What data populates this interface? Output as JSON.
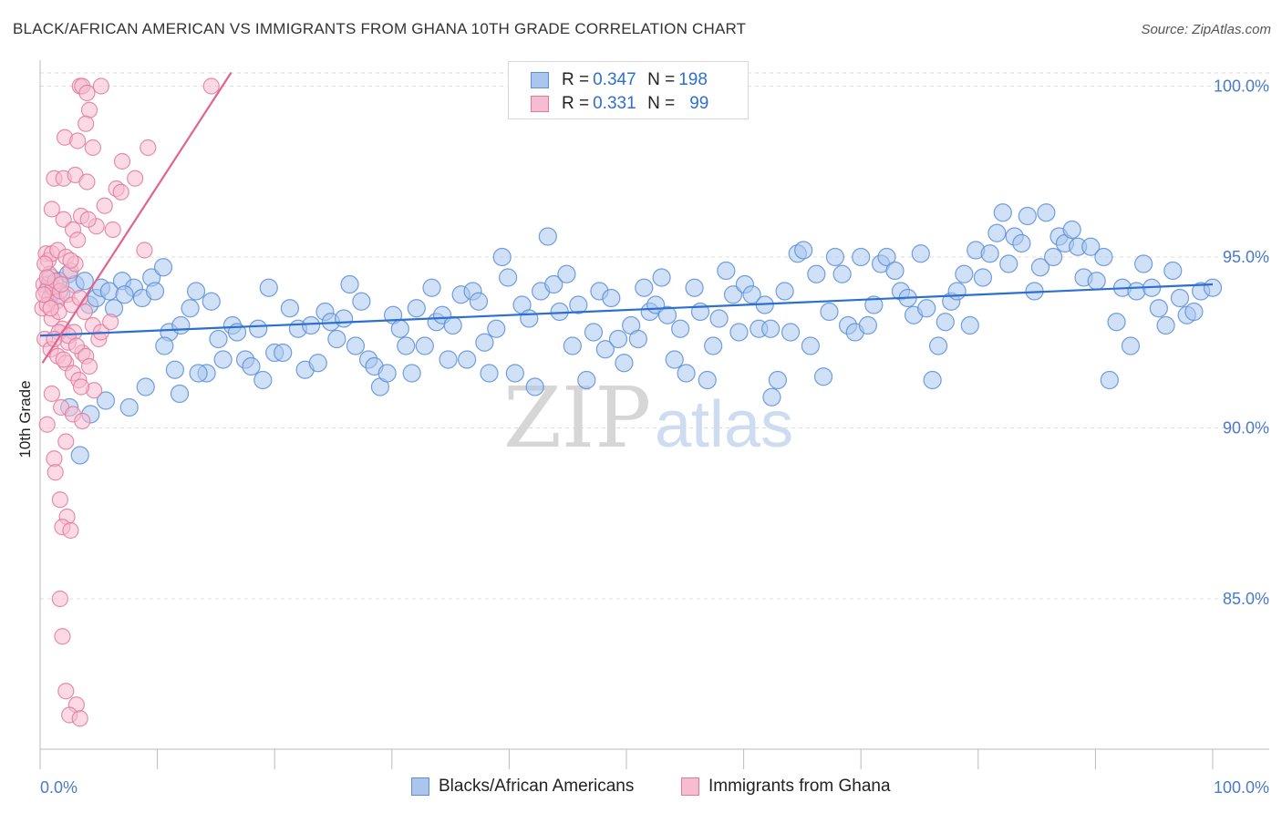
{
  "title": "BLACK/AFRICAN AMERICAN VS IMMIGRANTS FROM GHANA 10TH GRADE CORRELATION CHART",
  "source": "Source: ZipAtlas.com",
  "watermark": {
    "zip": "ZIP",
    "atlas": "atlas"
  },
  "legend": {
    "r_label": "R =",
    "n_label": "N =",
    "rows": [
      {
        "r": "0.347",
        "n": "198",
        "color": "#5b8fd8",
        "fill": "#aac6ee"
      },
      {
        "r": "0.331",
        "n": "99",
        "color": "#e07a9c",
        "fill": "#f7bcd0"
      }
    ]
  },
  "bottom_legend": [
    {
      "label": "Blacks/African Americans",
      "fill": "#aac6ee",
      "stroke": "#5b8fd8"
    },
    {
      "label": "Immigrants from Ghana",
      "fill": "#f7bcd0",
      "stroke": "#e07a9c"
    }
  ],
  "chart_data": {
    "type": "scatter",
    "ylabel": "10th Grade",
    "xlim": [
      0,
      100
    ],
    "ylim": [
      80.6,
      100.6
    ],
    "y_ticks": [
      {
        "v": 85,
        "label": "85.0%"
      },
      {
        "v": 90,
        "label": "90.0%"
      },
      {
        "v": 95,
        "label": "95.0%"
      },
      {
        "v": 100,
        "label": "100.0%"
      }
    ],
    "x_tick_labels": {
      "min": "0.0%",
      "max": "100.0%"
    },
    "grid": true,
    "series": [
      {
        "name": "Blacks/African Americans",
        "color": "#5b8fd8",
        "fill": "#aac6ee",
        "trend": {
          "x": [
            0,
            100
          ],
          "y": [
            92.7,
            94.2
          ],
          "color": "#2b6fd1"
        },
        "points": [
          [
            0.8,
            94.2
          ],
          [
            0.9,
            94.4
          ],
          [
            1.1,
            94.0
          ],
          [
            1.6,
            94.3
          ],
          [
            1.8,
            93.9
          ],
          [
            2.4,
            94.5
          ],
          [
            3.0,
            94.2
          ],
          [
            3.8,
            94.3
          ],
          [
            4.2,
            93.6
          ],
          [
            4.8,
            93.8
          ],
          [
            5.2,
            94.1
          ],
          [
            5.9,
            94.0
          ],
          [
            6.3,
            93.5
          ],
          [
            7.0,
            94.3
          ],
          [
            8.0,
            94.1
          ],
          [
            7.2,
            93.9
          ],
          [
            8.7,
            93.8
          ],
          [
            9.5,
            94.4
          ],
          [
            9.8,
            94.0
          ],
          [
            10.5,
            94.7
          ],
          [
            11.0,
            92.8
          ],
          [
            11.5,
            91.7
          ],
          [
            12.0,
            93.0
          ],
          [
            12.8,
            93.5
          ],
          [
            13.3,
            94.0
          ],
          [
            14.2,
            91.6
          ],
          [
            14.6,
            93.7
          ],
          [
            15.2,
            92.6
          ],
          [
            15.6,
            92.0
          ],
          [
            16.4,
            93.0
          ],
          [
            16.8,
            92.8
          ],
          [
            17.5,
            92.0
          ],
          [
            18.0,
            91.8
          ],
          [
            18.6,
            92.9
          ],
          [
            19.0,
            91.4
          ],
          [
            19.5,
            94.1
          ],
          [
            20.0,
            92.2
          ],
          [
            20.7,
            92.2
          ],
          [
            21.3,
            93.5
          ],
          [
            22.0,
            92.9
          ],
          [
            22.6,
            91.7
          ],
          [
            23.1,
            93.0
          ],
          [
            23.7,
            91.9
          ],
          [
            24.3,
            93.4
          ],
          [
            24.8,
            93.1
          ],
          [
            25.3,
            92.6
          ],
          [
            25.9,
            93.2
          ],
          [
            26.4,
            94.2
          ],
          [
            26.9,
            92.4
          ],
          [
            27.4,
            93.7
          ],
          [
            28.0,
            92.0
          ],
          [
            28.5,
            91.8
          ],
          [
            29.0,
            91.2
          ],
          [
            29.6,
            91.6
          ],
          [
            30.1,
            93.3
          ],
          [
            30.7,
            92.9
          ],
          [
            31.2,
            92.4
          ],
          [
            31.7,
            91.6
          ],
          [
            32.1,
            93.5
          ],
          [
            32.8,
            92.4
          ],
          [
            33.4,
            94.1
          ],
          [
            33.8,
            93.1
          ],
          [
            34.3,
            93.3
          ],
          [
            34.8,
            92.0
          ],
          [
            35.2,
            93.0
          ],
          [
            35.9,
            93.9
          ],
          [
            36.4,
            92.0
          ],
          [
            36.9,
            94.0
          ],
          [
            37.4,
            93.7
          ],
          [
            37.9,
            92.5
          ],
          [
            38.3,
            91.6
          ],
          [
            38.9,
            92.9
          ],
          [
            39.4,
            95.0
          ],
          [
            39.9,
            94.4
          ],
          [
            40.5,
            91.6
          ],
          [
            41.1,
            93.6
          ],
          [
            41.7,
            93.2
          ],
          [
            42.2,
            91.2
          ],
          [
            42.7,
            94.0
          ],
          [
            43.3,
            95.6
          ],
          [
            43.8,
            94.2
          ],
          [
            44.3,
            93.4
          ],
          [
            44.9,
            94.5
          ],
          [
            45.4,
            92.4
          ],
          [
            45.9,
            93.6
          ],
          [
            46.6,
            91.4
          ],
          [
            47.2,
            92.8
          ],
          [
            47.7,
            94.0
          ],
          [
            48.2,
            92.3
          ],
          [
            48.7,
            93.8
          ],
          [
            49.3,
            92.6
          ],
          [
            49.8,
            91.9
          ],
          [
            50.4,
            93.0
          ],
          [
            51.0,
            92.6
          ],
          [
            51.5,
            94.1
          ],
          [
            52.0,
            93.4
          ],
          [
            52.5,
            93.6
          ],
          [
            53.0,
            94.4
          ],
          [
            53.5,
            93.3
          ],
          [
            54.1,
            92.0
          ],
          [
            54.6,
            92.9
          ],
          [
            55.1,
            91.6
          ],
          [
            55.8,
            94.1
          ],
          [
            56.3,
            93.4
          ],
          [
            56.9,
            91.4
          ],
          [
            57.4,
            92.4
          ],
          [
            57.9,
            93.2
          ],
          [
            58.5,
            94.6
          ],
          [
            59.1,
            93.9
          ],
          [
            59.6,
            92.8
          ],
          [
            60.1,
            94.2
          ],
          [
            60.7,
            93.9
          ],
          [
            61.3,
            92.9
          ],
          [
            61.8,
            93.6
          ],
          [
            62.3,
            92.9
          ],
          [
            62.9,
            91.4
          ],
          [
            63.5,
            94.0
          ],
          [
            64.0,
            92.8
          ],
          [
            64.6,
            95.1
          ],
          [
            65.1,
            95.2
          ],
          [
            65.7,
            92.4
          ],
          [
            66.2,
            94.5
          ],
          [
            66.8,
            91.5
          ],
          [
            67.3,
            93.4
          ],
          [
            67.8,
            95.0
          ],
          [
            68.4,
            94.5
          ],
          [
            68.9,
            93.0
          ],
          [
            69.5,
            92.8
          ],
          [
            70.0,
            95.0
          ],
          [
            70.6,
            93.0
          ],
          [
            71.1,
            93.6
          ],
          [
            71.7,
            94.8
          ],
          [
            72.2,
            95.0
          ],
          [
            72.9,
            94.6
          ],
          [
            73.4,
            94.0
          ],
          [
            74.0,
            93.8
          ],
          [
            74.5,
            93.3
          ],
          [
            75.1,
            95.1
          ],
          [
            75.6,
            93.5
          ],
          [
            76.1,
            91.4
          ],
          [
            76.6,
            92.4
          ],
          [
            77.2,
            93.1
          ],
          [
            77.7,
            93.7
          ],
          [
            78.2,
            94.0
          ],
          [
            78.8,
            94.5
          ],
          [
            79.3,
            93.0
          ],
          [
            79.8,
            95.2
          ],
          [
            80.4,
            94.4
          ],
          [
            81.0,
            95.1
          ],
          [
            81.6,
            95.7
          ],
          [
            82.1,
            96.3
          ],
          [
            82.6,
            94.8
          ],
          [
            83.1,
            95.6
          ],
          [
            83.7,
            95.4
          ],
          [
            84.2,
            96.2
          ],
          [
            84.8,
            94.0
          ],
          [
            85.3,
            94.7
          ],
          [
            85.8,
            96.3
          ],
          [
            86.4,
            95.0
          ],
          [
            86.9,
            95.6
          ],
          [
            87.4,
            95.4
          ],
          [
            88.0,
            95.8
          ],
          [
            88.5,
            95.3
          ],
          [
            89.0,
            94.4
          ],
          [
            89.6,
            95.3
          ],
          [
            90.1,
            94.3
          ],
          [
            90.7,
            95.0
          ],
          [
            91.2,
            91.4
          ],
          [
            91.8,
            93.1
          ],
          [
            92.3,
            94.1
          ],
          [
            93.0,
            92.4
          ],
          [
            93.5,
            94.0
          ],
          [
            94.1,
            94.8
          ],
          [
            94.8,
            94.1
          ],
          [
            95.4,
            93.5
          ],
          [
            96.0,
            93.0
          ],
          [
            96.6,
            94.6
          ],
          [
            97.2,
            93.8
          ],
          [
            97.8,
            93.3
          ],
          [
            98.4,
            93.4
          ],
          [
            99.0,
            94.0
          ],
          [
            100.0,
            94.1
          ],
          [
            62.4,
            90.9
          ],
          [
            2.5,
            90.6
          ],
          [
            3.4,
            89.2
          ],
          [
            4.3,
            90.4
          ],
          [
            5.6,
            90.8
          ],
          [
            7.6,
            90.6
          ],
          [
            9.0,
            91.2
          ],
          [
            11.9,
            91.0
          ],
          [
            13.5,
            91.6
          ],
          [
            10.6,
            92.4
          ]
        ]
      },
      {
        "name": "Immigrants from Ghana",
        "color": "#e07a9c",
        "fill": "#f7bcd0",
        "trend": {
          "x": [
            0.2,
            16.3
          ],
          "y": [
            91.9,
            100.4
          ],
          "color": "#e0648e"
        },
        "points": [
          [
            3.4,
            100.0
          ],
          [
            3.6,
            100.0
          ],
          [
            4.0,
            99.8
          ],
          [
            5.2,
            100.0
          ],
          [
            14.6,
            100.0
          ],
          [
            4.2,
            99.3
          ],
          [
            2.1,
            98.5
          ],
          [
            3.2,
            98.4
          ],
          [
            3.9,
            98.9
          ],
          [
            4.5,
            98.2
          ],
          [
            7.0,
            97.8
          ],
          [
            9.2,
            98.2
          ],
          [
            1.2,
            97.3
          ],
          [
            2.0,
            97.3
          ],
          [
            3.0,
            97.4
          ],
          [
            4.0,
            97.2
          ],
          [
            6.5,
            97.0
          ],
          [
            8.1,
            97.3
          ],
          [
            1.0,
            96.4
          ],
          [
            2.0,
            96.1
          ],
          [
            2.8,
            95.8
          ],
          [
            3.5,
            96.2
          ],
          [
            4.8,
            95.9
          ],
          [
            6.2,
            95.8
          ],
          [
            8.9,
            95.2
          ],
          [
            0.5,
            95.1
          ],
          [
            0.7,
            94.9
          ],
          [
            1.0,
            95.1
          ],
          [
            1.5,
            95.2
          ],
          [
            2.2,
            95.0
          ],
          [
            2.6,
            94.6
          ],
          [
            3.0,
            94.8
          ],
          [
            0.3,
            94.2
          ],
          [
            0.5,
            94.0
          ],
          [
            0.8,
            93.8
          ],
          [
            1.1,
            94.1
          ],
          [
            1.4,
            93.7
          ],
          [
            0.2,
            93.5
          ],
          [
            0.6,
            93.6
          ],
          [
            1.0,
            93.2
          ],
          [
            1.6,
            93.4
          ],
          [
            1.9,
            92.9
          ],
          [
            2.4,
            92.5
          ],
          [
            2.9,
            92.8
          ],
          [
            3.6,
            92.2
          ],
          [
            4.5,
            93.0
          ],
          [
            5.0,
            92.6
          ],
          [
            0.4,
            92.6
          ],
          [
            0.9,
            92.3
          ],
          [
            1.5,
            92.1
          ],
          [
            2.2,
            91.9
          ],
          [
            2.8,
            91.6
          ],
          [
            3.3,
            91.4
          ],
          [
            4.6,
            91.1
          ],
          [
            1.0,
            91.0
          ],
          [
            1.8,
            90.6
          ],
          [
            2.8,
            90.4
          ],
          [
            3.6,
            90.2
          ],
          [
            0.6,
            90.1
          ],
          [
            2.2,
            89.6
          ],
          [
            1.2,
            89.1
          ],
          [
            1.3,
            88.7
          ],
          [
            1.7,
            87.9
          ],
          [
            2.3,
            87.4
          ],
          [
            1.9,
            87.1
          ],
          [
            2.6,
            87.0
          ],
          [
            1.7,
            85.0
          ],
          [
            1.9,
            83.9
          ],
          [
            2.2,
            82.3
          ],
          [
            3.1,
            81.9
          ],
          [
            2.5,
            81.6
          ],
          [
            3.4,
            81.5
          ],
          [
            0.8,
            94.5
          ],
          [
            1.3,
            94.3
          ],
          [
            1.7,
            94.0
          ],
          [
            2.3,
            93.9
          ],
          [
            2.7,
            93.6
          ],
          [
            3.4,
            93.8
          ],
          [
            3.8,
            93.4
          ],
          [
            0.4,
            94.8
          ],
          [
            1.6,
            92.8
          ],
          [
            2.4,
            92.7
          ],
          [
            3.1,
            92.4
          ],
          [
            3.9,
            92.1
          ],
          [
            4.2,
            91.8
          ],
          [
            0.3,
            93.9
          ],
          [
            1.2,
            92.6
          ],
          [
            2.0,
            92.0
          ],
          [
            3.5,
            91.2
          ],
          [
            5.2,
            92.8
          ],
          [
            6.0,
            93.1
          ],
          [
            0.9,
            93.5
          ],
          [
            1.8,
            94.2
          ],
          [
            2.6,
            94.9
          ],
          [
            3.2,
            95.5
          ],
          [
            4.1,
            96.1
          ],
          [
            5.5,
            96.5
          ],
          [
            6.9,
            96.9
          ],
          [
            0.6,
            94.4
          ]
        ]
      }
    ]
  }
}
